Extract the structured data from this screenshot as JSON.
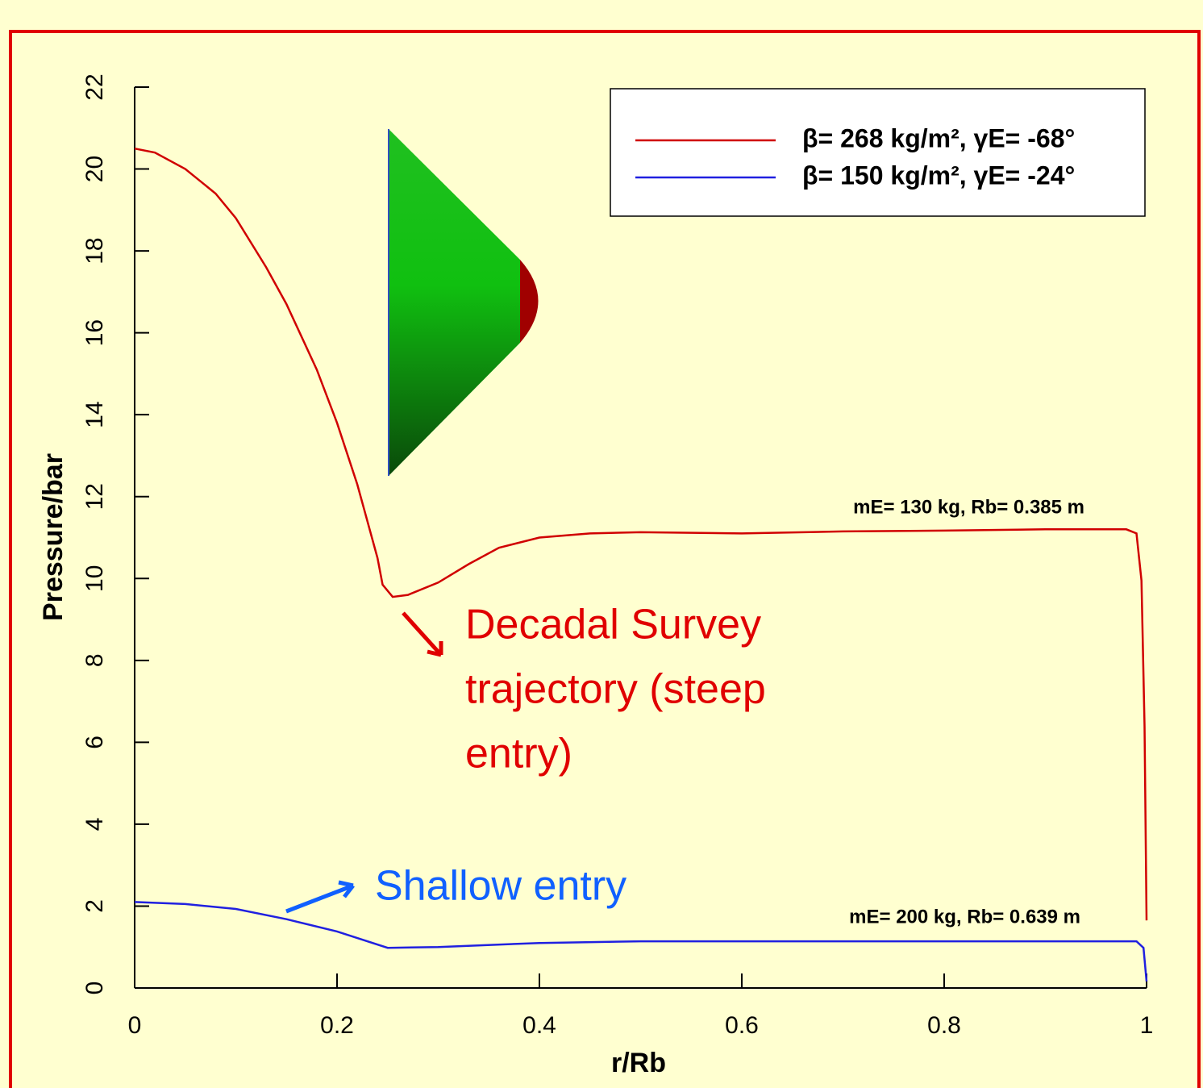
{
  "chart_data": {
    "type": "line",
    "x_label": "r/Rb",
    "y_label": "Pressure/bar",
    "xlim": [
      0,
      1
    ],
    "xticks": [
      0,
      0.2,
      0.4,
      0.6,
      0.8,
      1
    ],
    "ylim": [
      0,
      22
    ],
    "yticks": [
      0,
      2,
      4,
      6,
      8,
      10,
      12,
      14,
      16,
      18,
      20,
      22
    ],
    "legend": "top-right",
    "series": [
      {
        "name": "β= 268 kg/m², γE= -68°",
        "color": "#d00000",
        "x": [
          0,
          0.02,
          0.05,
          0.08,
          0.1,
          0.13,
          0.15,
          0.18,
          0.2,
          0.22,
          0.24,
          0.245,
          0.255,
          0.27,
          0.3,
          0.33,
          0.36,
          0.4,
          0.45,
          0.5,
          0.6,
          0.7,
          0.8,
          0.9,
          0.98,
          0.99,
          0.995,
          0.998,
          1.0
        ],
        "values": [
          20.5,
          20.4,
          20.0,
          19.4,
          18.8,
          17.6,
          16.7,
          15.1,
          13.8,
          12.3,
          10.5,
          9.85,
          9.55,
          9.6,
          9.9,
          10.35,
          10.75,
          11.0,
          11.1,
          11.13,
          11.1,
          11.15,
          11.17,
          11.2,
          11.2,
          11.1,
          9.95,
          6.4,
          1.65
        ]
      },
      {
        "name": "β= 150 kg/m², γE= -24°",
        "color": "#2020e0",
        "x": [
          0,
          0.05,
          0.1,
          0.15,
          0.2,
          0.25,
          0.3,
          0.4,
          0.5,
          0.7,
          0.9,
          0.99,
          0.997,
          1.0
        ],
        "values": [
          2.1,
          2.05,
          1.93,
          1.68,
          1.38,
          0.98,
          1.0,
          1.1,
          1.14,
          1.14,
          1.14,
          1.14,
          0.98,
          0.16
        ]
      }
    ],
    "annotations": {
      "red_curve_note": "mE= 130 kg, Rb= 0.385 m",
      "blue_curve_note": "mE= 200 kg, Rb= 0.639 m",
      "steep_label": [
        "Decadal Survey",
        "trajectory (steep",
        "entry)"
      ],
      "shallow_label": "Shallow entry"
    }
  }
}
